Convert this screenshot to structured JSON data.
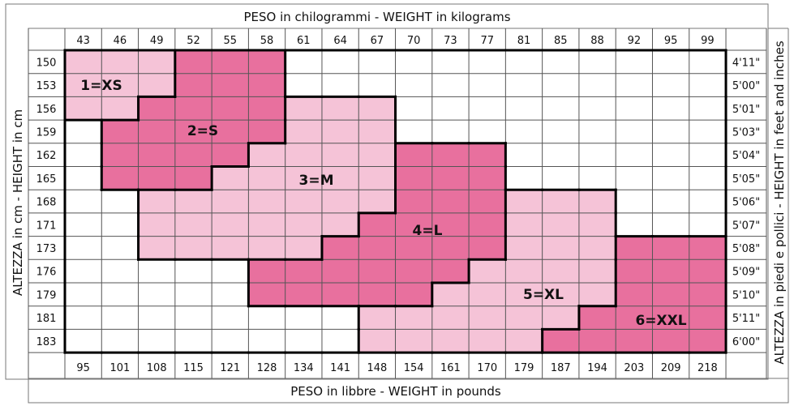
{
  "chart_data": {
    "type": "table",
    "title_top": "PESO in chilogrammi -  WEIGHT in kilograms",
    "title_bottom": "PESO in libbre -  WEIGHT in pounds",
    "title_left": "ALTEZZA in cm  -  HEIGHT in cm",
    "title_right": "ALTEZZA in piedi e pollici - HEIGHT in feet and inches",
    "weights_kg": [
      "43",
      "46",
      "49",
      "52",
      "55",
      "58",
      "61",
      "64",
      "67",
      "70",
      "73",
      "77",
      "81",
      "85",
      "88",
      "92",
      "95",
      "99"
    ],
    "weights_lb": [
      "95",
      "101",
      "108",
      "115",
      "121",
      "128",
      "134",
      "141",
      "148",
      "154",
      "161",
      "170",
      "179",
      "187",
      "194",
      "203",
      "209",
      "218"
    ],
    "heights_cm": [
      "150",
      "153",
      "156",
      "159",
      "162",
      "165",
      "168",
      "171",
      "173",
      "176",
      "179",
      "181",
      "183"
    ],
    "heights_ftin": [
      "4'11\"",
      "5'00\"",
      "5'01\"",
      "5'03\"",
      "5'04\"",
      "5'05\"",
      "5'06\"",
      "5'07\"",
      "5'08\"",
      "5'09\"",
      "5'10\"",
      "5'11\"",
      "6'00\""
    ],
    "colors": {
      "light": "#f5c3d7",
      "dark": "#e8709e",
      "empty": "#ffffff"
    },
    "sizes": [
      {
        "label": "1=XS",
        "shade": "light",
        "cells": [
          {
            "height": "150",
            "from": "43",
            "to": "49"
          },
          {
            "height": "153",
            "from": "43",
            "to": "49"
          },
          {
            "height": "156",
            "from": "43",
            "to": "46"
          }
        ]
      },
      {
        "label": "2=S",
        "shade": "dark",
        "cells": [
          {
            "height": "150",
            "from": "52",
            "to": "58"
          },
          {
            "height": "153",
            "from": "52",
            "to": "58"
          },
          {
            "height": "156",
            "from": "49",
            "to": "58"
          },
          {
            "height": "159",
            "from": "46",
            "to": "58"
          },
          {
            "height": "162",
            "from": "46",
            "to": "55"
          },
          {
            "height": "165",
            "from": "46",
            "to": "52"
          }
        ]
      },
      {
        "label": "3=M",
        "shade": "light",
        "cells": [
          {
            "height": "156",
            "from": "61",
            "to": "67"
          },
          {
            "height": "159",
            "from": "61",
            "to": "67"
          },
          {
            "height": "162",
            "from": "58",
            "to": "67"
          },
          {
            "height": "165",
            "from": "55",
            "to": "67"
          },
          {
            "height": "168",
            "from": "49",
            "to": "67"
          },
          {
            "height": "171",
            "from": "49",
            "to": "64"
          },
          {
            "height": "173",
            "from": "49",
            "to": "61"
          }
        ]
      },
      {
        "label": "4=L",
        "shade": "dark",
        "cells": [
          {
            "height": "162",
            "from": "70",
            "to": "77"
          },
          {
            "height": "165",
            "from": "70",
            "to": "77"
          },
          {
            "height": "168",
            "from": "70",
            "to": "77"
          },
          {
            "height": "171",
            "from": "67",
            "to": "77"
          },
          {
            "height": "173",
            "from": "64",
            "to": "77"
          },
          {
            "height": "176",
            "from": "58",
            "to": "73"
          },
          {
            "height": "179",
            "from": "58",
            "to": "70"
          }
        ]
      },
      {
        "label": "5=XL",
        "shade": "light",
        "cells": [
          {
            "height": "168",
            "from": "81",
            "to": "88"
          },
          {
            "height": "171",
            "from": "81",
            "to": "88"
          },
          {
            "height": "173",
            "from": "81",
            "to": "88"
          },
          {
            "height": "176",
            "from": "77",
            "to": "88"
          },
          {
            "height": "179",
            "from": "73",
            "to": "88"
          },
          {
            "height": "181",
            "from": "67",
            "to": "85"
          },
          {
            "height": "183",
            "from": "67",
            "to": "81"
          }
        ]
      },
      {
        "label": "6=XXL",
        "shade": "dark",
        "cells": [
          {
            "height": "173",
            "from": "92",
            "to": "99"
          },
          {
            "height": "176",
            "from": "92",
            "to": "99"
          },
          {
            "height": "179",
            "from": "92",
            "to": "99"
          },
          {
            "height": "181",
            "from": "88",
            "to": "99"
          },
          {
            "height": "183",
            "from": "85",
            "to": "99"
          }
        ]
      }
    ]
  }
}
